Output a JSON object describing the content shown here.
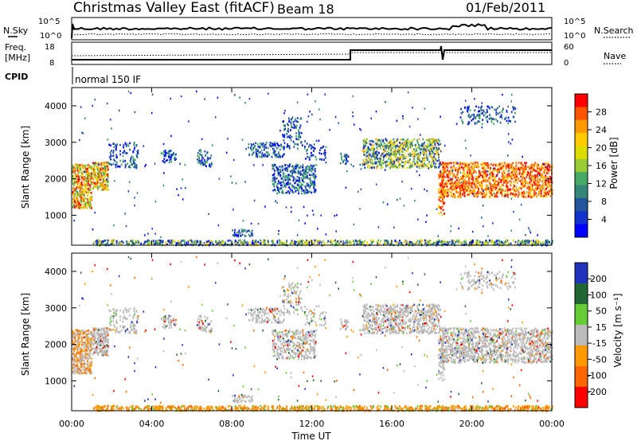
{
  "header": {
    "title": "Christmas Valley East (fitACF)",
    "beam": "Beam 18",
    "date": "01/Feb/2011"
  },
  "top_panels": {
    "nsky_label": "N.Sky",
    "nsky_ticks": [
      "10^5",
      "10^0"
    ],
    "nsearch_label": "N.Search",
    "nsearch_ticks": [
      "10^5",
      "10^0"
    ],
    "freq_label_1": "Freq.",
    "freq_label_2": "[MHz]",
    "freq_ticks": [
      "18",
      "8"
    ],
    "nave_label": "Nave",
    "nave_ticks": [
      "60",
      "0"
    ],
    "cpid_label": "CPID",
    "cpid_text": "normal 150 IF"
  },
  "chart_data": [
    {
      "type": "heatmap",
      "name": "power",
      "ylabel": "Slant Range [km]",
      "yticks": [
        "4000",
        "3000",
        "2000",
        "1000"
      ],
      "ylim": [
        180,
        4500
      ],
      "xlim": [
        0,
        24
      ],
      "colorbar_label": "Power [dB]",
      "colorbar_ticks": [
        "28",
        "24",
        "20",
        "16",
        "12",
        "8",
        "4"
      ],
      "colorbar_colors": [
        "#ff0000",
        "#ff5500",
        "#ff9900",
        "#ffcc00",
        "#dddd00",
        "#99cc33",
        "#44aa66",
        "#338877",
        "#225599",
        "#1133cc",
        "#0000ff"
      ]
    },
    {
      "type": "heatmap",
      "name": "velocity",
      "ylabel": "Slant Range [km]",
      "yticks": [
        "4000",
        "3000",
        "2000",
        "1000"
      ],
      "ylim": [
        180,
        4500
      ],
      "xlim": [
        0,
        24
      ],
      "xlabel": "Time UT",
      "xticks": [
        "00:00",
        "04:00",
        "08:00",
        "12:00",
        "16:00",
        "20:00",
        "00:00"
      ],
      "colorbar_label": "Velocity [m s⁻¹]",
      "colorbar_ticks": [
        "200",
        "100",
        "50",
        "15",
        "-15",
        "-50",
        "-100",
        "-200"
      ],
      "colorbar_colors": [
        "#2233bb",
        "#226633",
        "#66cc33",
        "#bbbbbb",
        "#ff9900",
        "#ff6600",
        "#ff0000"
      ]
    }
  ]
}
